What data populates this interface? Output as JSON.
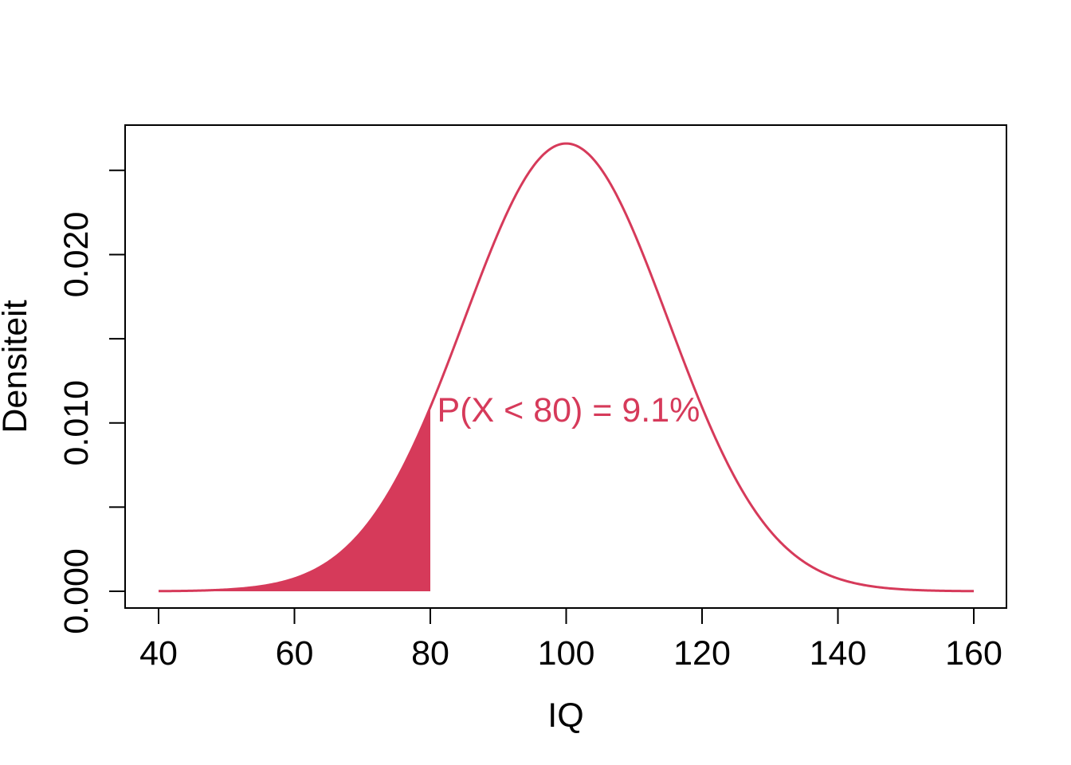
{
  "chart_data": {
    "type": "area",
    "xlabel": "IQ",
    "ylabel": "Densiteit",
    "xlim": [
      40,
      160
    ],
    "ylim": [
      0,
      0.0266
    ],
    "x_ticks": [
      40,
      60,
      80,
      100,
      120,
      140,
      160
    ],
    "x_tick_labels": [
      "40",
      "60",
      "80",
      "100",
      "120",
      "140",
      "160"
    ],
    "y_ticks": [
      0,
      0.005,
      0.01,
      0.015,
      0.02,
      0.025
    ],
    "y_tick_labels": [
      "0.000",
      "",
      "0.010",
      "",
      "0.020",
      ""
    ],
    "distribution": {
      "name": "normal",
      "mean": 100,
      "sd": 15
    },
    "shaded_region": {
      "from": 40,
      "to": 80
    },
    "annotation": {
      "text": "P(X < 80) = 9.1%",
      "x": 81,
      "y": 0.0108
    },
    "colors": {
      "curve": "#D63A5A",
      "fill": "#D63A5A",
      "axis": "#000000"
    },
    "grid": false,
    "legend": "none"
  }
}
